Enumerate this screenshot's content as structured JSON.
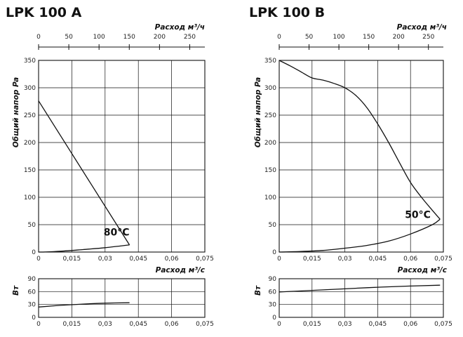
{
  "chart_data": [
    {
      "type": "line",
      "title": "LPK 100 A",
      "top_axis": {
        "label": "Расход м³/ч",
        "ticks": [
          "0",
          "50",
          "100",
          "150",
          "200",
          "250"
        ],
        "range": [
          0,
          275
        ]
      },
      "bottom_axis": {
        "label": "Расход м³/с",
        "ticks": [
          "0",
          "0,015",
          "0,03",
          "0,045",
          "0,06",
          "0,075"
        ],
        "range": [
          0,
          0.075
        ]
      },
      "pressure_axis": {
        "label": "Общий напор Pa",
        "ticks": [
          "0",
          "50",
          "100",
          "150",
          "200",
          "250",
          "300",
          "350"
        ],
        "range": [
          0,
          350
        ]
      },
      "power_axis": {
        "label": "Вт",
        "ticks": [
          "0",
          "30",
          "60",
          "90"
        ],
        "range": [
          0,
          90
        ]
      },
      "grid": true,
      "temperature_label": "80°C",
      "temperature_anchor": [
        0.041,
        30
      ],
      "fan_curve": {
        "x": [
          0,
          0.041
        ],
        "y": [
          276,
          13
        ]
      },
      "system_curve": {
        "x": [
          0,
          0.003,
          0.01,
          0.02,
          0.03,
          0.041
        ],
        "y": [
          0,
          0.1,
          1.5,
          4.5,
          8,
          13
        ]
      },
      "power_curve": {
        "x": [
          0,
          0.01,
          0.02,
          0.03,
          0.041
        ],
        "y": [
          24,
          28,
          31,
          33,
          34
        ]
      }
    },
    {
      "type": "line",
      "title": "LPK 100 B",
      "top_axis": {
        "label": "Расход м³/ч",
        "ticks": [
          "0",
          "50",
          "100",
          "150",
          "200",
          "250"
        ],
        "range": [
          0,
          275
        ]
      },
      "bottom_axis": {
        "label": "Расход м³/с",
        "ticks": [
          "0",
          "0,015",
          "0,03",
          "0,045",
          "0,06",
          "0,075"
        ],
        "range": [
          0,
          0.075
        ]
      },
      "pressure_axis": {
        "label": "Общий напор Pa",
        "ticks": [
          "0",
          "50",
          "100",
          "150",
          "200",
          "250",
          "300",
          "350"
        ],
        "range": [
          0,
          350
        ]
      },
      "power_axis": {
        "label": "Вт",
        "ticks": [
          "0",
          "30",
          "60",
          "90"
        ],
        "range": [
          0,
          90
        ]
      },
      "grid": true,
      "temperature_label": "50°C",
      "temperature_anchor": [
        0.0705,
        62
      ],
      "fan_curve": {
        "x": [
          0,
          0.005,
          0.01,
          0.015,
          0.02,
          0.025,
          0.03,
          0.035,
          0.04,
          0.045,
          0.05,
          0.055,
          0.06,
          0.065,
          0.07,
          0.0735
        ],
        "y": [
          350,
          340,
          329,
          318,
          314,
          308,
          300,
          286,
          264,
          234,
          200,
          163,
          127,
          100,
          76,
          60
        ]
      },
      "system_curve": {
        "x": [
          0,
          0.01,
          0.02,
          0.03,
          0.04,
          0.05,
          0.06,
          0.07,
          0.0735
        ],
        "y": [
          0,
          1,
          3,
          7,
          12,
          20,
          33,
          50,
          60
        ]
      },
      "power_curve": {
        "x": [
          0,
          0.02,
          0.04,
          0.06,
          0.0735
        ],
        "y": [
          59,
          64,
          69,
          73,
          75
        ]
      }
    }
  ]
}
